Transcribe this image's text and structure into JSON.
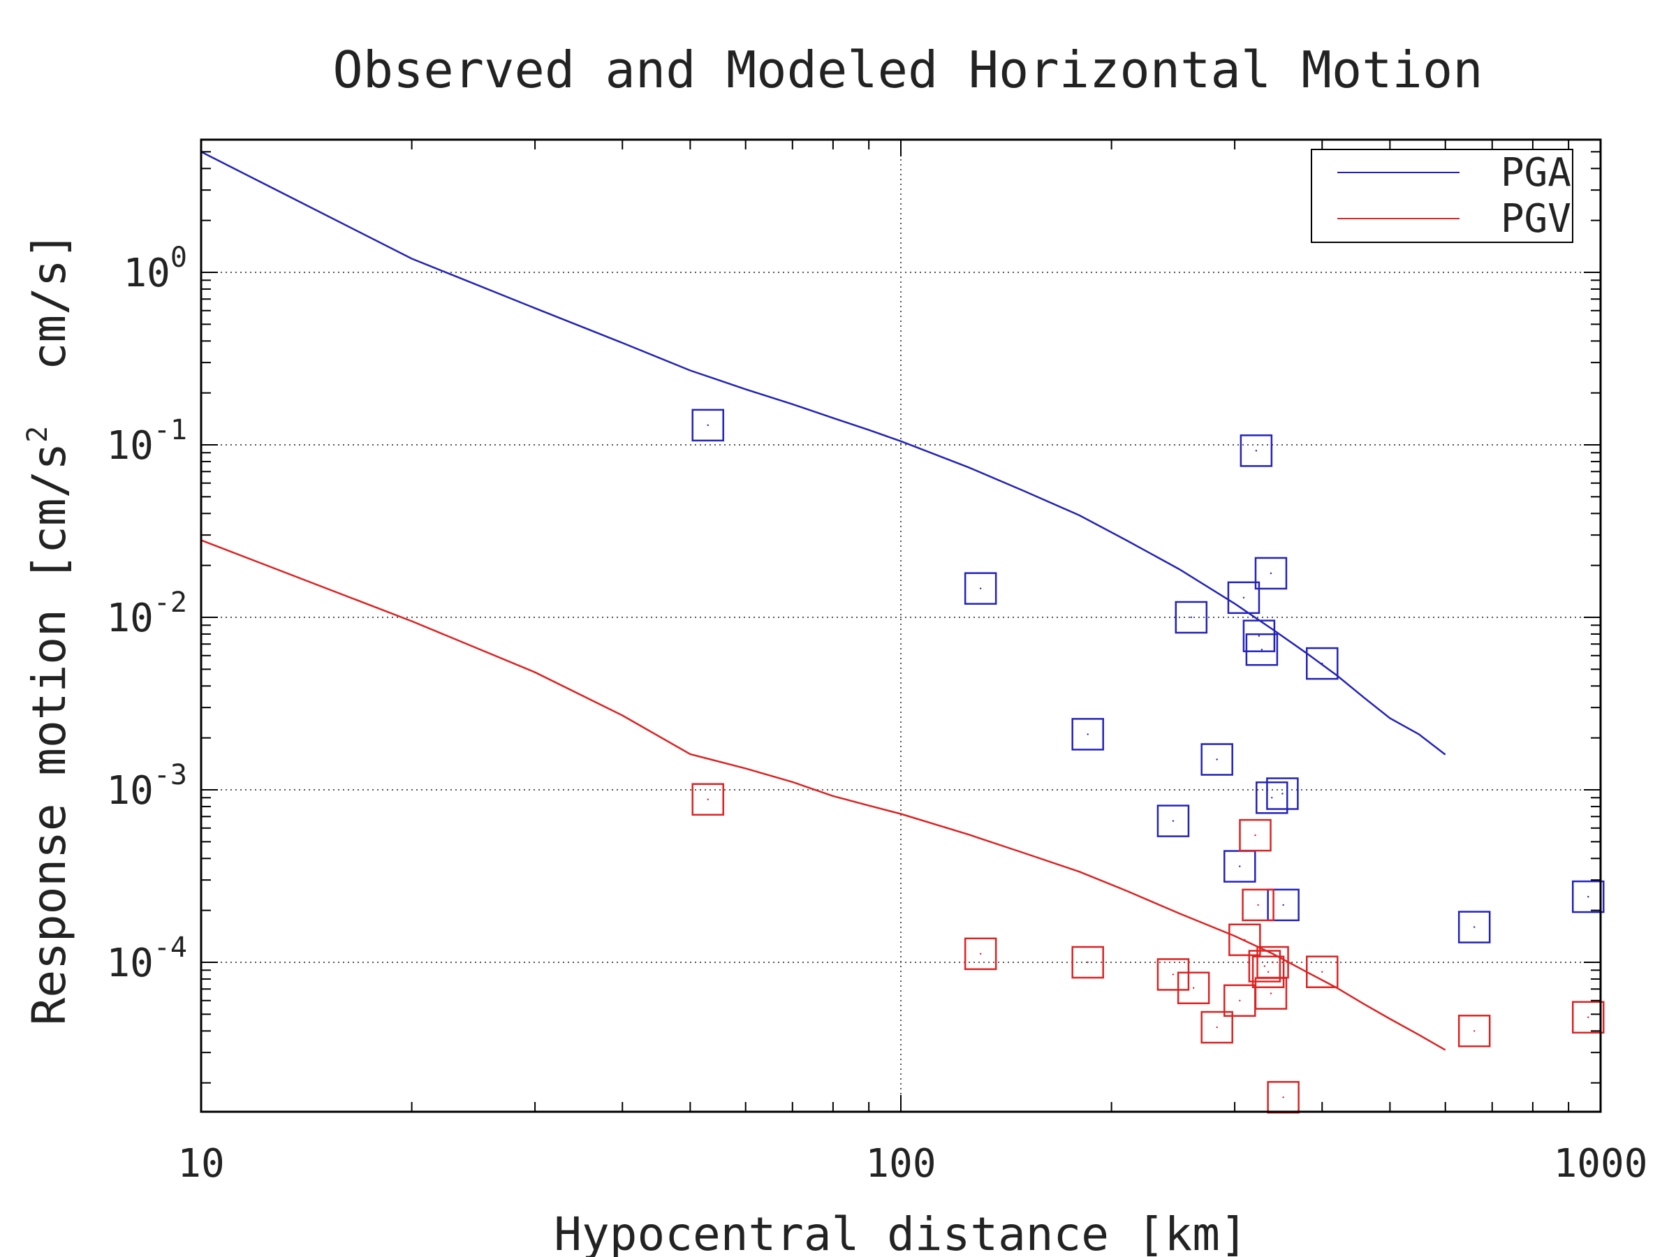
{
  "chart_data": {
    "type": "scatter",
    "title": "Observed and Modeled Horizontal Motion",
    "xlabel": "Hypocentral distance [km]",
    "ylabel": {
      "text": "Response motion [cm/s",
      "superscript": "2",
      "tail": "  cm/s]"
    },
    "xscale": "log",
    "yscale": "log",
    "xlim": [
      10,
      1000
    ],
    "ylim": [
      1e-05,
      5.5
    ],
    "x_ticks": [
      {
        "value": 10,
        "label": "10"
      },
      {
        "value": 100,
        "label": "100"
      },
      {
        "value": 1000,
        "label": "1000"
      }
    ],
    "y_ticks": [
      {
        "value": 1,
        "base": "10",
        "exp": "0"
      },
      {
        "value": 0.1,
        "base": "10",
        "exp": "-1"
      },
      {
        "value": 0.01,
        "base": "10",
        "exp": "-2"
      },
      {
        "value": 0.001,
        "base": "10",
        "exp": "-3"
      },
      {
        "value": 0.0001,
        "base": "10",
        "exp": "-4"
      }
    ],
    "grid": true,
    "legend_position": "top-right",
    "series": [
      {
        "name": "PGA",
        "color": "#2222bb",
        "line": {
          "x": [
            10,
            20,
            30,
            40,
            50,
            60,
            70,
            80,
            90,
            100,
            125,
            150,
            180,
            210,
            250,
            300,
            340,
            380,
            420,
            460,
            500,
            550,
            600
          ],
          "y": [
            5.0,
            1.2,
            0.62,
            0.39,
            0.27,
            0.21,
            0.172,
            0.143,
            0.122,
            0.105,
            0.074,
            0.054,
            0.039,
            0.028,
            0.019,
            0.012,
            0.0085,
            0.0062,
            0.0046,
            0.0034,
            0.0026,
            0.0021,
            0.0016
          ]
        },
        "points": {
          "x": [
            53,
            130,
            185,
            260,
            283,
            309,
            322,
            325,
            328,
            338,
            351,
            400,
            245,
            339,
            305,
            352,
            960,
            660
          ],
          "y": [
            0.13,
            0.0147,
            0.0021,
            0.01,
            0.0015,
            0.013,
            0.0925,
            0.0078,
            0.0065,
            0.018,
            0.00095,
            0.0054,
            0.00066,
            0.0009,
            0.00036,
            0.000215,
            0.00024,
            0.00016
          ]
        }
      },
      {
        "name": "PGV",
        "color": "#dd2222",
        "line": {
          "x": [
            10,
            20,
            30,
            40,
            50,
            60,
            70,
            80,
            90,
            100,
            125,
            150,
            180,
            210,
            250,
            300,
            340,
            380,
            420,
            460,
            500,
            550,
            600
          ],
          "y": [
            0.028,
            0.0095,
            0.0048,
            0.0027,
            0.00161,
            0.00133,
            0.00111,
            0.00092,
            0.00081,
            0.000725,
            0.00055,
            0.00043,
            0.000335,
            0.00026,
            0.000192,
            0.000142,
            0.000112,
            8.8e-05,
            7.1e-05,
            5.7e-05,
            4.7e-05,
            3.8e-05,
            3.1e-05
          ]
        },
        "points": {
          "x": [
            53,
            130,
            185,
            245,
            262,
            283,
            305,
            310,
            321,
            324,
            331,
            335,
            338,
            340,
            352,
            400,
            660,
            960
          ],
          "y": [
            0.00088,
            0.000112,
            0.0001,
            8.5e-05,
            7.1e-05,
            4.2e-05,
            6e-05,
            0.000135,
            0.000545,
            0.000215,
            9.5e-05,
            8.8e-05,
            6.6e-05,
            0.0001,
            1.65e-05,
            8.8e-05,
            4e-05,
            4.8e-05
          ]
        }
      }
    ]
  }
}
